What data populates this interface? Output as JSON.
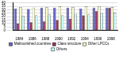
{
  "chart_data": {
    "type": "bar",
    "categories": [
      "1984",
      "1986",
      "1988",
      "1990",
      "1992",
      "1994",
      "1996",
      "1998"
    ],
    "series": [
      {
        "name": "Malnourished countries",
        "color": "#6666cc",
        "values": [
          32,
          31,
          33,
          33,
          33,
          32,
          33,
          33
        ]
      },
      {
        "name": "Class structure",
        "color": "#993366",
        "values": [
          10,
          12,
          13,
          15,
          17,
          22,
          28,
          33
        ]
      },
      {
        "name": "Other LPCCs",
        "color": "#ffffcc",
        "values": [
          34,
          33,
          34,
          35,
          34,
          35,
          35,
          34
        ]
      },
      {
        "name": "Others",
        "color": "#ccffff",
        "values": [
          21,
          22,
          23,
          22,
          24,
          23,
          25,
          26
        ]
      }
    ],
    "ylim": [
      0,
      40
    ],
    "yticks": [
      0,
      5,
      10,
      15,
      20,
      25,
      30,
      35,
      40
    ],
    "grid": true,
    "legend": "bottom"
  }
}
